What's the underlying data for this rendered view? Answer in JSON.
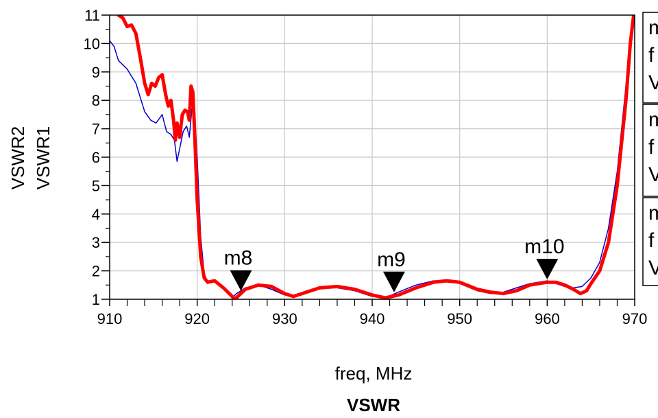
{
  "chart_data": {
    "type": "line",
    "title": "VSWR",
    "xlabel": "freq, MHz",
    "xlim": [
      910,
      970
    ],
    "ylim": [
      1,
      11
    ],
    "x_ticks": [
      910,
      920,
      930,
      940,
      950,
      960,
      970
    ],
    "y_ticks": [
      1,
      2,
      3,
      4,
      5,
      6,
      7,
      8,
      9,
      10,
      11
    ],
    "grid": true,
    "series": [
      {
        "name": "VSWR2",
        "color": "#0000cc",
        "x": [
          910.0,
          910.5,
          911.0,
          912.0,
          913.0,
          914.0,
          914.7,
          915.3,
          916.0,
          916.5,
          917.0,
          917.4,
          917.7,
          918.0,
          918.4,
          918.8,
          919.1,
          919.4,
          919.7,
          920.0,
          920.4,
          920.8,
          921.2,
          922.0,
          923.0,
          924.0,
          924.5,
          925.5,
          927.0,
          928.5,
          930.0,
          931.0,
          932.5,
          934.0,
          936.0,
          938.0,
          940.0,
          941.5,
          943.0,
          945.0,
          947.0,
          948.5,
          950.0,
          952.0,
          953.5,
          955.0,
          956.5,
          958.0,
          960.0,
          961.0,
          962.0,
          963.0,
          964.0,
          965.0,
          966.0,
          967.0,
          968.0,
          969.0,
          969.5,
          970.0
        ],
        "y": [
          10.1,
          9.9,
          9.4,
          9.1,
          8.6,
          7.6,
          7.3,
          7.2,
          7.5,
          6.9,
          6.8,
          6.6,
          5.85,
          6.3,
          6.9,
          7.1,
          6.7,
          7.7,
          7.5,
          6.0,
          3.2,
          1.9,
          1.6,
          1.65,
          1.35,
          1.05,
          1.2,
          1.4,
          1.5,
          1.35,
          1.15,
          1.1,
          1.3,
          1.4,
          1.4,
          1.3,
          1.1,
          1.05,
          1.25,
          1.5,
          1.65,
          1.65,
          1.55,
          1.3,
          1.2,
          1.25,
          1.4,
          1.55,
          1.65,
          1.55,
          1.45,
          1.4,
          1.45,
          1.75,
          2.3,
          3.5,
          5.5,
          8.5,
          10.0,
          11.0
        ]
      },
      {
        "name": "VSWR1",
        "color": "#ff0000",
        "x": [
          911.0,
          911.5,
          912.0,
          912.5,
          913.0,
          913.5,
          914.0,
          914.4,
          914.8,
          915.2,
          915.6,
          916.0,
          916.4,
          916.7,
          917.0,
          917.3,
          917.5,
          917.7,
          918.0,
          918.3,
          918.6,
          918.9,
          919.1,
          919.3,
          919.5,
          919.7,
          920.0,
          920.4,
          920.8,
          921.2,
          922.0,
          923.0,
          924.0,
          924.3,
          925.5,
          927.0,
          928.5,
          930.0,
          931.0,
          932.5,
          934.0,
          936.0,
          938.0,
          940.0,
          941.5,
          943.0,
          945.0,
          947.0,
          948.5,
          950.0,
          952.0,
          953.5,
          955.0,
          956.5,
          958.0,
          960.0,
          961.0,
          962.0,
          963.0,
          963.8,
          964.5,
          965.0,
          966.0,
          967.0,
          968.0,
          969.0,
          969.5,
          970.0
        ],
        "y": [
          11.0,
          10.9,
          10.6,
          10.65,
          10.35,
          9.5,
          8.6,
          8.2,
          8.6,
          8.5,
          8.8,
          8.9,
          8.2,
          7.8,
          8.0,
          7.3,
          6.6,
          7.2,
          6.7,
          7.5,
          7.65,
          7.6,
          7.3,
          8.5,
          8.3,
          7.0,
          4.5,
          2.5,
          1.75,
          1.6,
          1.65,
          1.4,
          1.1,
          1.0,
          1.35,
          1.5,
          1.45,
          1.2,
          1.1,
          1.25,
          1.4,
          1.45,
          1.35,
          1.15,
          1.05,
          1.15,
          1.4,
          1.6,
          1.65,
          1.6,
          1.35,
          1.25,
          1.2,
          1.3,
          1.5,
          1.6,
          1.6,
          1.5,
          1.35,
          1.2,
          1.3,
          1.55,
          2.0,
          3.0,
          5.0,
          8.0,
          10.0,
          11.5
        ]
      }
    ],
    "markers": [
      {
        "name": "m8",
        "x": 925.0,
        "y": 1.2
      },
      {
        "name": "m9",
        "x": 942.5,
        "y": 1.15
      },
      {
        "name": "m10",
        "x": 960.0,
        "y": 1.6
      }
    ],
    "marker_boxes": [
      {
        "lines": [
          "m",
          "f",
          "V"
        ]
      },
      {
        "lines": [
          "m",
          "f",
          "V"
        ]
      },
      {
        "lines": [
          "m",
          "f",
          "V"
        ]
      }
    ]
  }
}
